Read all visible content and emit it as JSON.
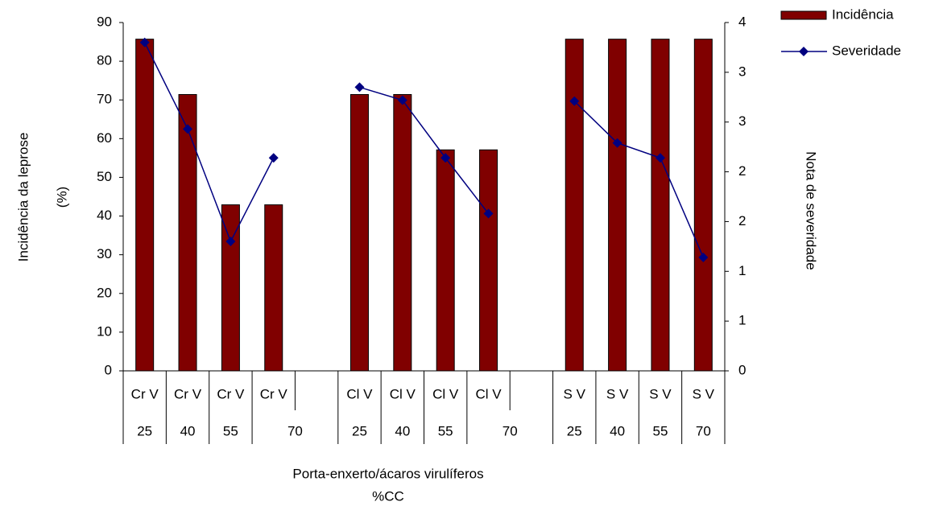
{
  "chart_data": {
    "type": "bar-line",
    "y_label_lines": [
      "Incidência da leprose",
      "(%)"
    ],
    "y2_label": "Nota de severidade",
    "x_label_lines": [
      "Porta-enxerto/ácaros virulíferos",
      "%CC"
    ],
    "categories": [
      "Cr V",
      "Cr V",
      "Cr V",
      "Cr V",
      null,
      "Cl V",
      "Cl V",
      "Cl V",
      "Cl V",
      null,
      "S V",
      "S V",
      "S V",
      "S V"
    ],
    "subcategories": [
      "25",
      "40",
      "55",
      "70",
      null,
      "25",
      "40",
      "55",
      "70",
      null,
      "25",
      "40",
      "55",
      "70"
    ],
    "series": [
      {
        "name": "Incidência",
        "type": "bar",
        "color": "#800000",
        "values": [
          85.7,
          71.4,
          42.9,
          42.9,
          null,
          71.4,
          71.4,
          57.1,
          57.1,
          null,
          85.7,
          85.7,
          85.7,
          85.7
        ]
      },
      {
        "name": "Severidade",
        "type": "line",
        "axis": "y2",
        "color": "#000080",
        "marker": "diamond",
        "values": [
          3.3,
          2.43,
          1.3,
          2.14,
          null,
          2.85,
          2.72,
          2.14,
          1.58,
          null,
          2.71,
          2.29,
          2.14,
          1.14
        ]
      }
    ],
    "ylim": [
      0,
      90
    ],
    "yticks": [
      0,
      10,
      20,
      30,
      40,
      50,
      60,
      70,
      80,
      90
    ],
    "y2lim": [
      0,
      3.5
    ],
    "y2ticks": [
      0,
      {
        "value": 0.5,
        "label": "1"
      },
      1,
      {
        "value": 1.5,
        "label": "2"
      },
      2,
      {
        "value": 2.5,
        "label": "3"
      },
      3,
      {
        "value": 3.5,
        "label": "4"
      }
    ],
    "legend": "top-right",
    "grid": false
  }
}
